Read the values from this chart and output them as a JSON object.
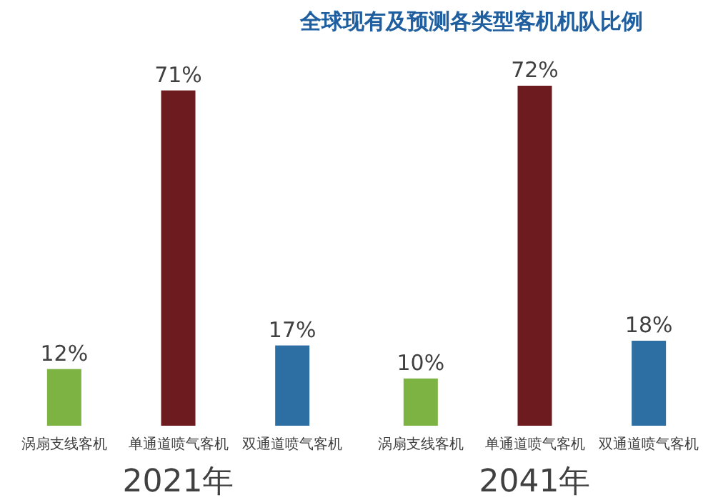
{
  "chart_data": [
    {
      "type": "bar",
      "xlabel": "2021年",
      "categories": [
        "涡扇支线客机",
        "单通道喷气客机",
        "双通道喷气客机"
      ],
      "values": [
        12,
        71,
        17
      ],
      "colors": [
        "#7cb342",
        "#6d1b1f",
        "#2e6fa3"
      ],
      "value_labels": [
        "12%",
        "71%",
        "17%"
      ],
      "tick_labels": "x"
    },
    {
      "type": "bar",
      "title": "全球现有及预测各类型客机机队比例",
      "xlabel": "2041年",
      "categories": [
        "涡扇支线客机",
        "单通道喷气客机",
        "双通道喷气客机"
      ],
      "values": [
        10,
        72,
        18
      ],
      "colors": [
        "#7cb342",
        "#6d1b1f",
        "#2e6fa3"
      ],
      "value_labels": [
        "10%",
        "72%",
        "18%"
      ],
      "tick_labels": "x"
    }
  ]
}
